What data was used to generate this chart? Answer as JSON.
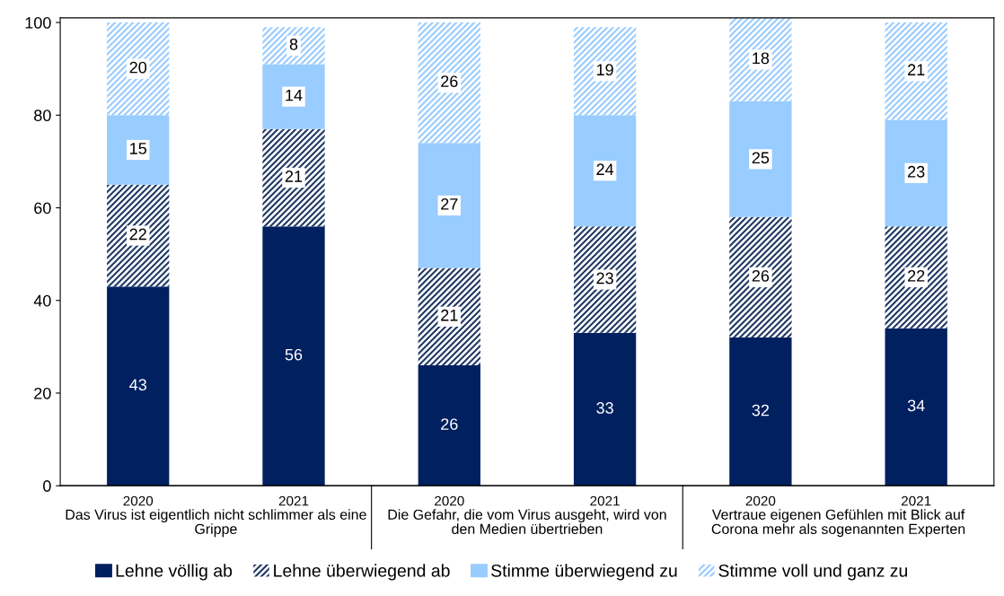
{
  "chart_data": {
    "type": "bar",
    "stacked": true,
    "categories": [
      "2020",
      "2021",
      "2020",
      "2021",
      "2020",
      "2021"
    ],
    "annotations": [
      "Das Virus ist eigentlich nicht schlimmer als eine Grippe",
      "Die Gefahr, die vom Virus ausgeht, wird von den Medien übertrieben",
      "Vertraue eigenen Gefühlen mit Blick auf Corona mehr als sogenannten Experten"
    ],
    "series": [
      {
        "name": "Lehne völlig ab",
        "color": "#002060",
        "values": [
          43,
          56,
          26,
          33,
          32,
          34
        ]
      },
      {
        "name": "Lehne überwiegend ab",
        "color": "#1f3864",
        "values": [
          22,
          21,
          21,
          23,
          26,
          22
        ]
      },
      {
        "name": "Stimme überwiegend zu",
        "color": "#99ccff",
        "values": [
          15,
          14,
          27,
          24,
          25,
          23
        ]
      },
      {
        "name": "Stimme voll und ganz zu",
        "color": "#99ccff",
        "values": [
          20,
          8,
          26,
          19,
          18,
          21
        ]
      }
    ],
    "ylim": [
      0,
      101
    ],
    "yticks": [
      0,
      20,
      40,
      60,
      80,
      100
    ],
    "data_labels": true,
    "grid": false,
    "legend": "bottom"
  }
}
